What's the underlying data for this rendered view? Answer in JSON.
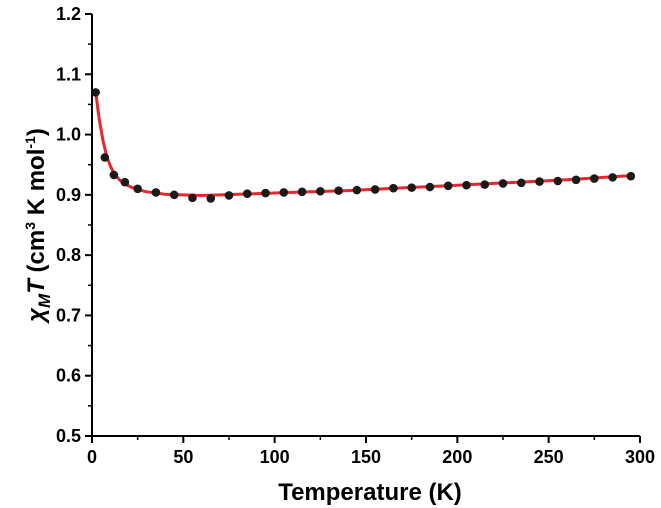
{
  "chart_data": {
    "type": "scatter",
    "title": "",
    "xlabel": "Temperature (K)",
    "ylabel": {
      "symbol_main": "χ",
      "symbol_sub": "M",
      "symbol_T": "T",
      "units_open": " (cm",
      "units_sup1": "3",
      "units_mid": " K mol",
      "units_sup2": "-1",
      "units_close": ")"
    },
    "xlim": [
      0,
      300
    ],
    "ylim": [
      0.5,
      1.2
    ],
    "x_ticks": [
      0,
      50,
      100,
      150,
      200,
      250,
      300
    ],
    "y_ticks": [
      0.5,
      0.6,
      0.7,
      0.8,
      0.9,
      1.0,
      1.1,
      1.2
    ],
    "x_tick_labels": [
      "0",
      "50",
      "100",
      "150",
      "200",
      "250",
      "300"
    ],
    "y_tick_labels": [
      "0.5",
      "0.6",
      "0.7",
      "0.8",
      "0.9",
      "1.0",
      "1.1",
      "1.2"
    ],
    "grid": false,
    "legend": "none",
    "series": [
      {
        "kind": "points",
        "color": "#1a1a1a",
        "x": [
          2,
          7,
          12,
          18,
          25,
          35,
          45,
          55,
          65,
          75,
          85,
          95,
          105,
          115,
          125,
          135,
          145,
          155,
          165,
          175,
          185,
          195,
          205,
          215,
          225,
          235,
          245,
          255,
          265,
          275,
          285,
          295
        ],
        "y": [
          1.07,
          0.962,
          0.933,
          0.921,
          0.91,
          0.904,
          0.9,
          0.895,
          0.894,
          0.899,
          0.902,
          0.903,
          0.904,
          0.905,
          0.906,
          0.907,
          0.908,
          0.909,
          0.911,
          0.912,
          0.913,
          0.915,
          0.916,
          0.917,
          0.919,
          0.92,
          0.922,
          0.923,
          0.925,
          0.927,
          0.929,
          0.931
        ]
      },
      {
        "kind": "fit-line",
        "color": "#e8262b",
        "x": [
          2,
          4,
          6,
          8,
          10,
          12,
          15,
          18,
          22,
          26,
          30,
          35,
          40,
          50,
          60,
          70,
          80,
          100,
          120,
          140,
          160,
          180,
          200,
          220,
          240,
          260,
          280,
          295
        ],
        "y": [
          1.07,
          1.025,
          0.99,
          0.965,
          0.948,
          0.936,
          0.925,
          0.918,
          0.912,
          0.908,
          0.905,
          0.903,
          0.901,
          0.9,
          0.899,
          0.9,
          0.901,
          0.903,
          0.905,
          0.907,
          0.91,
          0.913,
          0.916,
          0.919,
          0.922,
          0.925,
          0.929,
          0.932
        ]
      }
    ]
  }
}
